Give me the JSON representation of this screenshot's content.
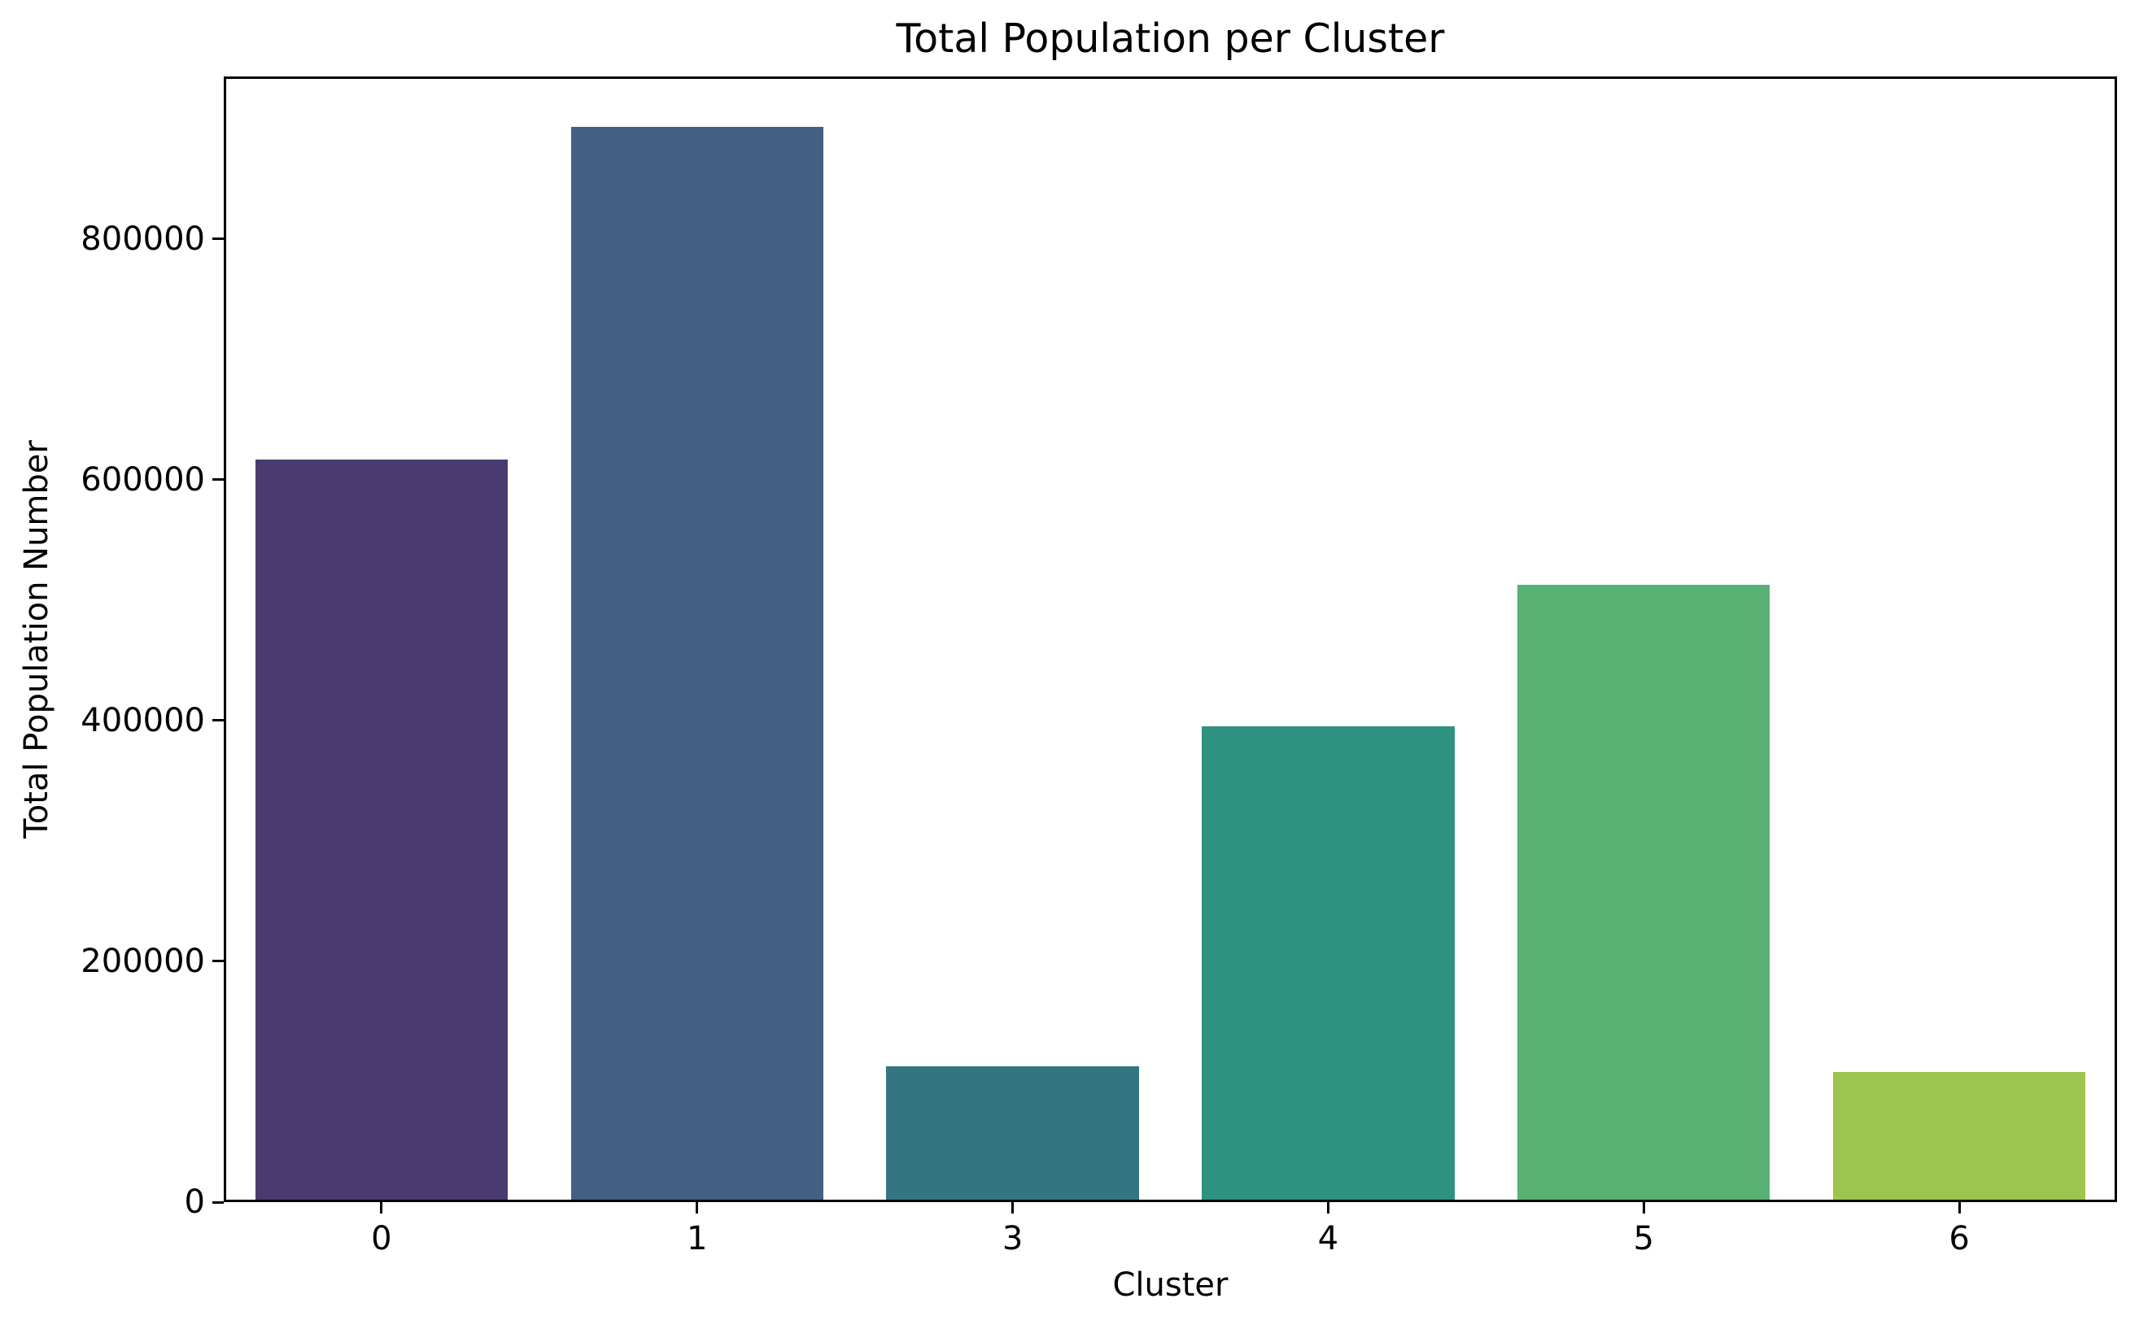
{
  "figure": {
    "background_color": "#ffffff",
    "axis_color": "#000000",
    "text_color": "#000000"
  },
  "chart_data": {
    "type": "bar",
    "title": "Total Population per Cluster",
    "xlabel": "Cluster",
    "ylabel": "Total Population Number",
    "categories": [
      "0",
      "1",
      "3",
      "4",
      "5",
      "6"
    ],
    "values": [
      615000,
      891000,
      111000,
      393000,
      511000,
      106000
    ],
    "bar_colors": [
      "#493b71",
      "#445f82",
      "#337681",
      "#2f9180",
      "#57b173",
      "#9cc54f"
    ],
    "yticks": [
      {
        "value": 0,
        "label": "0"
      },
      {
        "value": 200000,
        "label": "200000"
      },
      {
        "value": 400000,
        "label": "400000"
      },
      {
        "value": 600000,
        "label": "600000"
      },
      {
        "value": 800000,
        "label": "800000"
      }
    ],
    "ylim": [
      0,
      935000
    ],
    "grid": false,
    "legend": "none",
    "bar_width_fraction": 0.8
  }
}
